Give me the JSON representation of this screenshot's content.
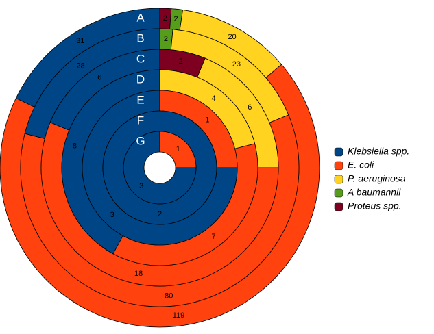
{
  "chart_data": {
    "type": "multi-ring-donut",
    "categories": [
      "A",
      "B",
      "C",
      "D",
      "E",
      "F",
      "G"
    ],
    "series": [
      {
        "name": "Klebsiella spp.",
        "color": "#004586",
        "values": [
          31,
          28,
          6,
          8,
          3,
          2,
          3
        ]
      },
      {
        "name": "E. coli",
        "color": "#ff420e",
        "values": [
          119,
          80,
          18,
          7,
          1,
          0,
          1
        ]
      },
      {
        "name": "P. aeruginosa",
        "color": "#ffd320",
        "values": [
          20,
          23,
          6,
          4,
          0,
          0,
          0
        ]
      },
      {
        "name": "A baumannii",
        "color": "#579d1c",
        "values": [
          2,
          2,
          0,
          0,
          0,
          0,
          0
        ]
      },
      {
        "name": "Proteus spp.",
        "color": "#7e0021",
        "values": [
          2,
          0,
          2,
          0,
          0,
          0,
          0
        ]
      }
    ],
    "legend": "right"
  }
}
